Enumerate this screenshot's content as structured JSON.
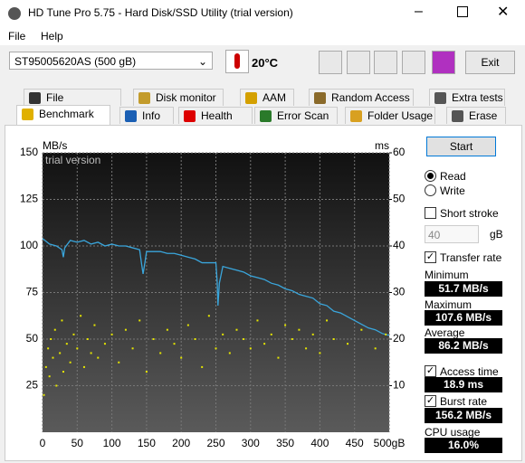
{
  "window": {
    "title": "HD Tune Pro 5.75 - Hard Disk/SSD Utility (trial version)"
  },
  "menu": [
    "File",
    "Help"
  ],
  "toolbar": {
    "drive": "ST95005620AS (500 gB)",
    "temperature": "20°C",
    "exit": "Exit"
  },
  "tabs": {
    "row1": [
      "File Benchmark",
      "Disk monitor",
      "AAM",
      "Random Access",
      "Extra tests"
    ],
    "row2": [
      "Benchmark",
      "Info",
      "Health",
      "Error Scan",
      "Folder Usage",
      "Erase"
    ]
  },
  "chart_data": {
    "type": "line",
    "ylabel": "MB/s",
    "y2label": "ms",
    "annotation": "trial version",
    "grid": true,
    "xlim": [
      0,
      500
    ],
    "xticks": [
      0,
      50,
      100,
      150,
      200,
      250,
      300,
      350,
      400,
      450,
      {
        "value": 500,
        "label": "500gB"
      }
    ],
    "ylim": [
      0,
      150
    ],
    "yticks": [
      25,
      50,
      75,
      100,
      125,
      150
    ],
    "y2lim": [
      0,
      60
    ],
    "y2ticks": [
      10,
      20,
      30,
      40,
      50,
      60
    ],
    "series": [
      {
        "color": "#3aa6dc",
        "x": [
          0,
          10,
          20,
          28,
          30,
          32,
          40,
          50,
          60,
          70,
          80,
          90,
          100,
          110,
          120,
          130,
          140,
          143,
          145,
          148,
          150,
          160,
          170,
          180,
          190,
          200,
          210,
          220,
          230,
          240,
          250,
          252,
          253,
          255,
          260,
          270,
          280,
          290,
          300,
          310,
          320,
          330,
          340,
          350,
          360,
          370,
          380,
          390,
          400,
          410,
          420,
          430,
          440,
          450,
          460,
          470,
          480,
          490,
          500
        ],
        "values": [
          104,
          101,
          100,
          98,
          94,
          99,
          103,
          102,
          103,
          101,
          102,
          100,
          101,
          100,
          100,
          99,
          98,
          90,
          85,
          92,
          97,
          97,
          97,
          96,
          96,
          95,
          94,
          93,
          91,
          91,
          91,
          80,
          68,
          80,
          89,
          88,
          87,
          86,
          84,
          83,
          82,
          80,
          79,
          77,
          76,
          74,
          73,
          72,
          69,
          68,
          65,
          64,
          62,
          60,
          58,
          56,
          55,
          53,
          52
        ]
      },
      {
        "type": "scatter",
        "axis": "y2",
        "color": "#e6e600",
        "x": [
          2,
          5,
          8,
          10,
          12,
          15,
          18,
          20,
          25,
          28,
          30,
          35,
          40,
          45,
          50,
          55,
          60,
          65,
          70,
          75,
          80,
          90,
          100,
          110,
          120,
          130,
          140,
          150,
          160,
          170,
          180,
          190,
          200,
          210,
          220,
          230,
          240,
          250,
          260,
          270,
          280,
          290,
          300,
          310,
          320,
          330,
          340,
          350,
          360,
          370,
          380,
          390,
          400,
          410,
          420,
          440,
          460,
          480,
          495
        ],
        "values": [
          8,
          14,
          18,
          12,
          20,
          16,
          22,
          10,
          17,
          24,
          13,
          19,
          15,
          21,
          18,
          25,
          14,
          20,
          17,
          23,
          16,
          19,
          21,
          15,
          22,
          18,
          24,
          13,
          20,
          17,
          22,
          19,
          16,
          23,
          20,
          14,
          25,
          18,
          21,
          17,
          22,
          20,
          18,
          24,
          19,
          21,
          16,
          23,
          20,
          22,
          18,
          21,
          17,
          24,
          20,
          19,
          22,
          18,
          21
        ]
      }
    ]
  },
  "panel": {
    "start": "Start",
    "read": {
      "label": "Read",
      "selected": true
    },
    "write": {
      "label": "Write",
      "selected": false
    },
    "short_stroke": {
      "label": "Short stroke",
      "checked": false
    },
    "stroke_size": 40,
    "stroke_unit": "gB",
    "transfer_rate": {
      "label": "Transfer rate",
      "checked": true
    },
    "minimum": {
      "label": "Minimum",
      "value": "51.7 MB/s"
    },
    "maximum": {
      "label": "Maximum",
      "value": "107.6 MB/s"
    },
    "average": {
      "label": "Average",
      "value": "86.2 MB/s"
    },
    "access_time": {
      "label": "Access time",
      "checked": true,
      "value": "18.9 ms"
    },
    "burst_rate": {
      "label": "Burst rate",
      "checked": true,
      "value": "156.2 MB/s"
    },
    "cpu_usage": {
      "label": "CPU usage",
      "value": "16.0%"
    }
  }
}
